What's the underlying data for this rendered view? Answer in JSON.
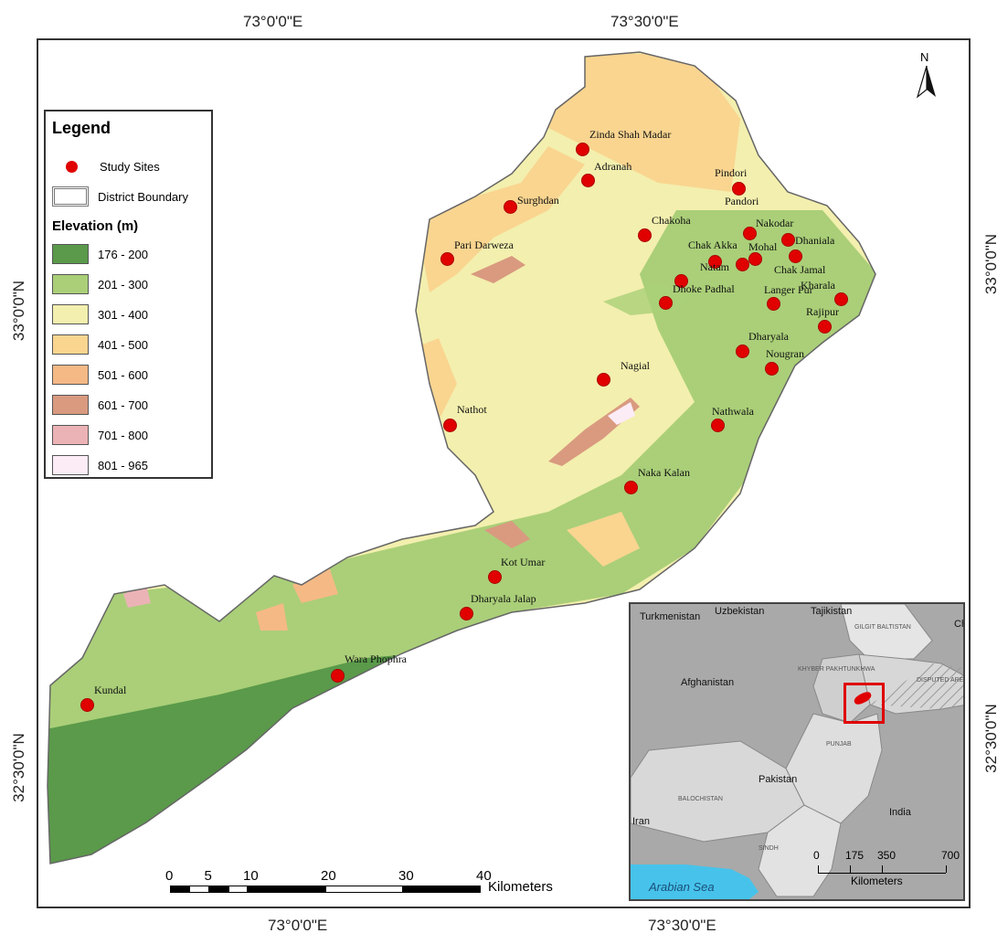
{
  "coordinates": {
    "top": [
      "73°0'0\"E",
      "73°30'0\"E"
    ],
    "bottom": [
      "73°0'0\"E",
      "73°30'0\"E"
    ],
    "left": [
      "33°0'0\"N",
      "32°30'0\"N"
    ],
    "right": [
      "33°0'0\"N",
      "32°30'0\"N"
    ]
  },
  "north_arrow": "N",
  "legend": {
    "title": "Legend",
    "study_sites": "Study Sites",
    "district_boundary": "District Boundary",
    "elevation_title": "Elevation (m)",
    "classes": [
      {
        "label": "176 - 200",
        "color": "#5a9a4a"
      },
      {
        "label": "201 - 300",
        "color": "#aacf78"
      },
      {
        "label": "301 - 400",
        "color": "#f3efae"
      },
      {
        "label": "401 - 500",
        "color": "#f9d590"
      },
      {
        "label": "501 - 600",
        "color": "#f5b986"
      },
      {
        "label": "601 - 700",
        "color": "#d99a80"
      },
      {
        "label": "701 - 800",
        "color": "#ecb3b6"
      },
      {
        "label": "801 - 965",
        "color": "#fbecf6"
      }
    ]
  },
  "sites": [
    "Zinda Shah Madar",
    "Adranah",
    "Surghdan",
    "Pari Darweza",
    "Pindori",
    "Pandori",
    "Chakoha",
    "Nakodar",
    "Chak Akka",
    "Mohal",
    "Dhaniala",
    "Natam",
    "Chak Jamal",
    "Dhoke Padhal",
    "Langer Pur",
    "Kharala",
    "Rajipur",
    "Dharyala",
    "Nougran",
    "Nagial",
    "Nathot",
    "Nathwala",
    "Naka Kalan",
    "Kot Umar",
    "Dharyala Jalap",
    "Wara Phophra",
    "Kundal"
  ],
  "scale_bar": {
    "ticks": [
      "0",
      "5",
      "10",
      "20",
      "30",
      "40"
    ],
    "unit": "Kilometers"
  },
  "inset": {
    "countries": [
      "Turkmenistan",
      "Uzbekistan",
      "Tajikistan",
      "China",
      "Afghanistan",
      "Pakistan",
      "India",
      "Iran"
    ],
    "regions": [
      "GILGIT BALTISTAN",
      "KHYBER PAKHTUNKHWA",
      "DISPUTED AREA",
      "PUNJAB",
      "BALOCHISTAN",
      "SINDH"
    ],
    "sea": "Arabian Sea",
    "scale_ticks": [
      "0",
      "175",
      "350",
      "700"
    ],
    "scale_unit": "Kilometers"
  }
}
